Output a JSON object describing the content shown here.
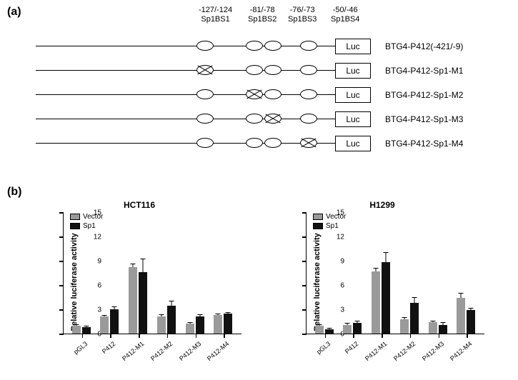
{
  "panelA": {
    "label": "(a)",
    "siteHeaders": [
      {
        "pos": "-127/-124",
        "name": "Sp1BS1",
        "x": 153
      },
      {
        "pos": "-81/-78",
        "name": "Sp1BS2",
        "x": 222
      },
      {
        "pos": "-76/-73",
        "name": "Sp1BS3",
        "x": 278
      },
      {
        "pos": "-50/-46",
        "name": "Sp1BS4",
        "x": 338
      }
    ],
    "lucLabel": "Luc",
    "sitePositions": [
      225,
      294,
      320,
      370
    ],
    "constructs": [
      {
        "name": "BTG4-P412(-421/-9)",
        "mutated": []
      },
      {
        "name": "BTG4-P412-Sp1-M1",
        "mutated": [
          0
        ]
      },
      {
        "name": "BTG4-P412-Sp1-M2",
        "mutated": [
          1
        ]
      },
      {
        "name": "BTG4-P412-Sp1-M3",
        "mutated": [
          2
        ]
      },
      {
        "name": "BTG4-P412-Sp1-M4",
        "mutated": [
          3
        ]
      }
    ]
  },
  "panelB": {
    "label": "(b)",
    "yLabel": "Relative luciferase activity",
    "legend": [
      {
        "label": "Vector",
        "color": "#9a9a9a"
      },
      {
        "label": "Sp1",
        "color": "#111111"
      }
    ],
    "charts": [
      {
        "title": "HCT116",
        "ymax": 15,
        "yticks": [
          0,
          3,
          6,
          9,
          12,
          15
        ],
        "categories": [
          "pGL3",
          "P412",
          "P412-M1",
          "P412-M2",
          "P412-M3",
          "P412-M4"
        ],
        "vector": [
          1.0,
          2.1,
          8.2,
          2.1,
          1.2,
          2.3
        ],
        "vectorErr": [
          0.1,
          0.1,
          0.4,
          0.2,
          0.1,
          0.1
        ],
        "sp1": [
          0.8,
          3.0,
          7.6,
          3.4,
          2.1,
          2.5
        ],
        "sp1Err": [
          0.1,
          0.3,
          1.6,
          0.6,
          0.2,
          0.1
        ]
      },
      {
        "title": "H1299",
        "ymax": 15,
        "yticks": [
          0,
          3,
          6,
          9,
          12,
          15
        ],
        "categories": [
          "pGL3",
          "P412",
          "P412-M1",
          "P412-M2",
          "P412-M3",
          "P412-M4"
        ],
        "vector": [
          1.0,
          1.1,
          7.7,
          1.8,
          1.4,
          4.4
        ],
        "vectorErr": [
          0.1,
          0.1,
          0.3,
          0.1,
          0.1,
          0.5
        ],
        "sp1": [
          0.5,
          1.3,
          8.8,
          3.8,
          1.1,
          2.9
        ],
        "sp1Err": [
          0.1,
          0.2,
          1.2,
          0.6,
          0.2,
          0.2
        ]
      }
    ],
    "colors": {
      "vector": "#9a9a9a",
      "sp1": "#111111"
    }
  }
}
